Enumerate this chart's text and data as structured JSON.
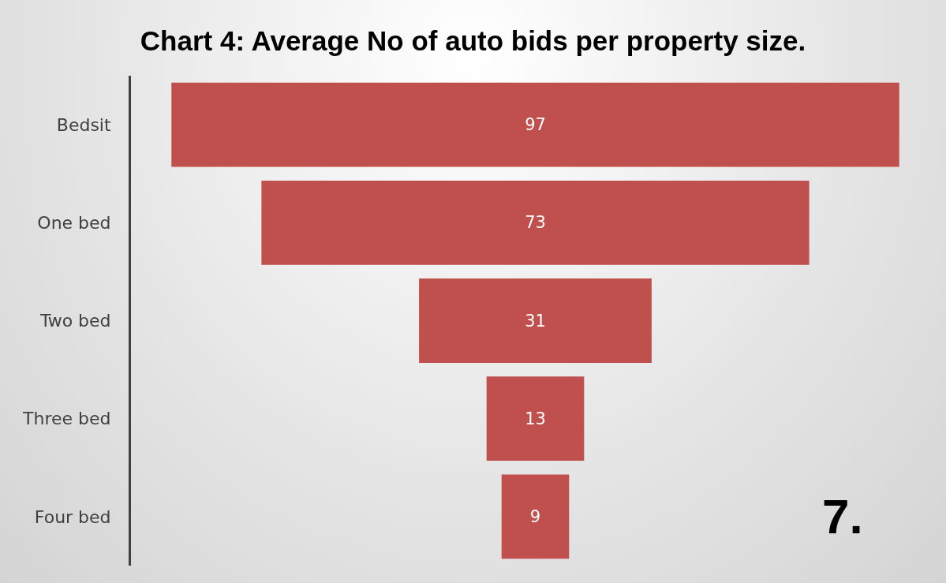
{
  "chart_data": {
    "type": "other",
    "title": "Chart 4: Average No of auto bids per property size.",
    "categories": [
      "Bedsit",
      "One bed",
      "Two bed",
      "Three bed",
      "Four bed"
    ],
    "values": [
      97,
      73,
      31,
      13,
      9
    ],
    "color": "#c0504d",
    "data_labels": true,
    "annotations": [
      "7."
    ]
  }
}
